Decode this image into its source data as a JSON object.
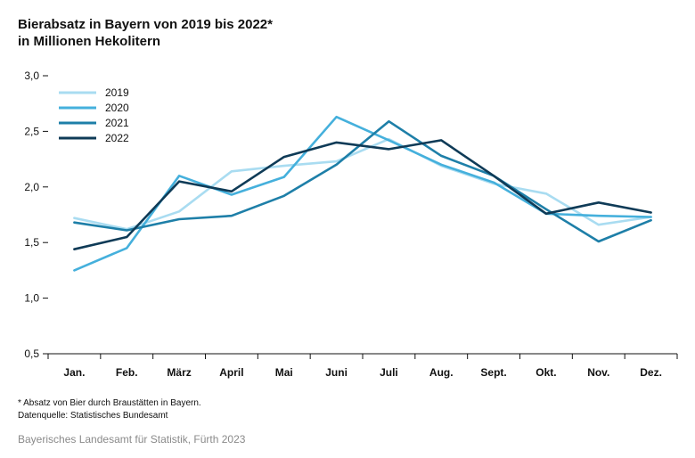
{
  "title": "Bierabsatz in Bayern von 2019 bis 2022*",
  "subtitle": "in Millionen Hekolitern",
  "footnote": "*   Absatz von Bier durch Braustätten in Bayern.",
  "data_source": "Datenquelle: Statistisches Bundesamt",
  "publisher": "Bayerisches Landesamt für Statistik, Fürth 2023",
  "chart_data": {
    "type": "line",
    "title": "Bierabsatz in Bayern von 2019 bis 2022*",
    "subtitle": "in Millionen Hekolitern",
    "xlabel": "",
    "ylabel": "",
    "categories": [
      "Jan.",
      "Feb.",
      "März",
      "April",
      "Mai",
      "Juni",
      "Juli",
      "Aug.",
      "Sept.",
      "Okt.",
      "Nov.",
      "Dez."
    ],
    "yticks": [
      "0,5",
      "1,0",
      "1,5",
      "2,0",
      "2,5",
      "3,0"
    ],
    "ylim": [
      0.5,
      3.0
    ],
    "grid": "horizontal baseline only; vertical separators at tick marks",
    "legend": "top-left",
    "series": [
      {
        "name": "2019",
        "color": "#a9dcf1",
        "values": [
          1.72,
          1.62,
          1.78,
          2.14,
          2.19,
          2.23,
          2.43,
          2.19,
          2.03,
          1.94,
          1.66,
          1.73
        ]
      },
      {
        "name": "2020",
        "color": "#45b0dc",
        "values": [
          1.25,
          1.45,
          2.1,
          1.93,
          2.09,
          2.63,
          2.42,
          2.2,
          2.04,
          1.76,
          1.74,
          1.73
        ]
      },
      {
        "name": "2021",
        "color": "#1e7fa8",
        "values": [
          1.68,
          1.61,
          1.71,
          1.74,
          1.92,
          2.2,
          2.59,
          2.28,
          2.1,
          1.8,
          1.51,
          1.7
        ]
      },
      {
        "name": "2022",
        "color": "#0f3b57",
        "values": [
          1.44,
          1.55,
          2.05,
          1.96,
          2.27,
          2.4,
          2.34,
          2.42,
          2.1,
          1.76,
          1.86,
          1.77
        ]
      }
    ]
  }
}
